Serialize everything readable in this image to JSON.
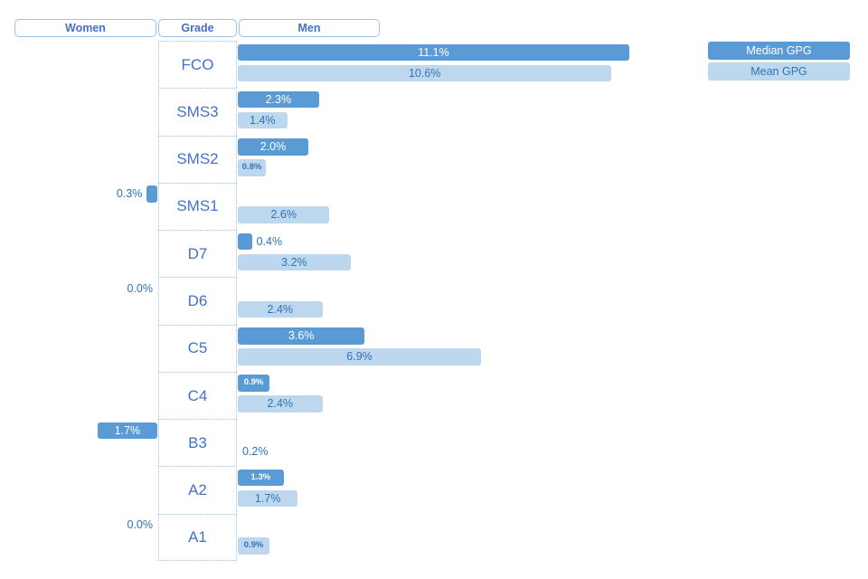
{
  "header": {
    "women": "Women",
    "grade": "Grade",
    "men": "Men"
  },
  "legend": [
    {
      "label": "Median GPG",
      "color": "#5B9BD5",
      "text_color": "#FFFFFF"
    },
    {
      "label": "Mean GPG",
      "color": "#BDD7EE",
      "text_color": "#2E74B5"
    }
  ],
  "colors": {
    "median_bar": "#5B9BD5",
    "mean_bar": "#BDD7EE",
    "value_label_blue": "#2E74B5",
    "header_text_blue": "#4472C4",
    "border_blue": "#9DC3E6",
    "background": "#FFFFFF"
  },
  "chart_data": {
    "type": "bar",
    "subtype": "diverging-tornado",
    "unit": "%",
    "value_format": "0.0%",
    "grid": false,
    "legend_position": "top-right",
    "categories": [
      "FCO",
      "SMS3",
      "SMS2",
      "SMS1",
      "D7",
      "D6",
      "C5",
      "C4",
      "B3",
      "A2",
      "A1"
    ],
    "series": [
      {
        "name": "Median GPG",
        "side": "men",
        "measure": "median",
        "values": [
          11.1,
          2.3,
          2.0,
          null,
          0.4,
          null,
          3.6,
          0.9,
          null,
          1.3,
          null
        ]
      },
      {
        "name": "Mean GPG",
        "side": "men",
        "measure": "mean",
        "values": [
          10.6,
          1.4,
          0.8,
          2.6,
          3.2,
          2.4,
          6.9,
          2.4,
          0.2,
          1.7,
          0.9
        ]
      },
      {
        "name": "Median GPG",
        "side": "women",
        "measure": "median",
        "values": [
          null,
          null,
          null,
          0.3,
          null,
          0.0,
          null,
          null,
          1.7,
          null,
          0.0
        ]
      }
    ]
  }
}
